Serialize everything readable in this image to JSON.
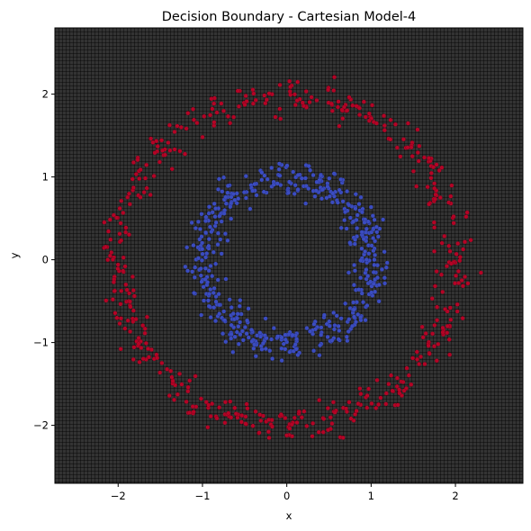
{
  "chart_data": {
    "type": "scatter",
    "subtype": "decision-boundary-contour",
    "title": "Decision Boundary - Cartesian Model-4",
    "xlabel": "x",
    "ylabel": "y",
    "xlim": [
      -2.75,
      2.8
    ],
    "ylim": [
      -2.7,
      2.8
    ],
    "xticks": [
      -2,
      -1,
      0,
      1,
      2
    ],
    "yticks": [
      -2,
      -1,
      0,
      1,
      2
    ],
    "xtick_labels": [
      "−2",
      "−1",
      "0",
      "1",
      "2"
    ],
    "ytick_labels": [
      "−2",
      "−1",
      "0",
      "1",
      "2"
    ],
    "grid": false,
    "legend": "none",
    "colormap": "coolwarm",
    "series": [
      {
        "color": "#b40426",
        "ring_radius": 2.0,
        "noise": 0.1,
        "n_points": 500
      },
      {
        "color": "#3b4cc0",
        "ring_radius": 1.0,
        "noise": 0.1,
        "n_points": 500
      }
    ]
  }
}
